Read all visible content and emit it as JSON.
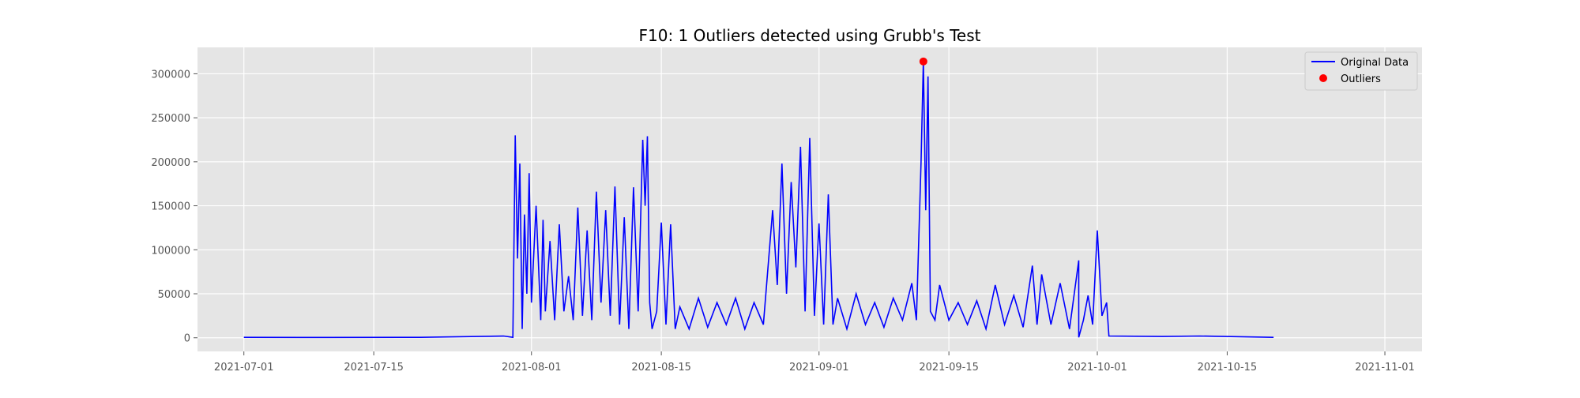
{
  "chart_data": {
    "type": "line",
    "title": "F10: 1 Outliers detected using Grubb's Test",
    "xlabel": "",
    "ylabel": "",
    "x_start": "2021-07-01",
    "x_end": "2021-11-01",
    "xlim": [
      "2021-06-26",
      "2021-11-05"
    ],
    "ylim": [
      -15500,
      330000
    ],
    "x_ticks": [
      "2021-07-01",
      "2021-07-15",
      "2021-08-01",
      "2021-08-15",
      "2021-09-01",
      "2021-09-15",
      "2021-10-01",
      "2021-10-15",
      "2021-11-01"
    ],
    "y_ticks": [
      0,
      50000,
      100000,
      150000,
      200000,
      250000,
      300000
    ],
    "y_tick_labels": [
      "0",
      "50000",
      "100000",
      "150000",
      "200000",
      "250000",
      "300000"
    ],
    "grid": true,
    "legend_position": "top-right",
    "series": [
      {
        "name": "Original Data",
        "color": "#0000ff",
        "points": [
          [
            "2021-07-01",
            500
          ],
          [
            "2021-07-10",
            400
          ],
          [
            "2021-07-20",
            500
          ],
          [
            "2021-07-29",
            2000
          ],
          [
            "2021-07-30",
            500
          ],
          [
            "2021-07-30 06:00",
            230000
          ],
          [
            "2021-07-30 12:00",
            90000
          ],
          [
            "2021-07-30 18:00",
            198000
          ],
          [
            "2021-07-31",
            10000
          ],
          [
            "2021-07-31 06:00",
            140000
          ],
          [
            "2021-07-31 12:00",
            50000
          ],
          [
            "2021-07-31 18:00",
            187000
          ],
          [
            "2021-08-01",
            40000
          ],
          [
            "2021-08-01 12:00",
            150000
          ],
          [
            "2021-08-02",
            20000
          ],
          [
            "2021-08-02 06:00",
            134000
          ],
          [
            "2021-08-02 12:00",
            30000
          ],
          [
            "2021-08-03",
            110000
          ],
          [
            "2021-08-03 12:00",
            20000
          ],
          [
            "2021-08-04",
            129000
          ],
          [
            "2021-08-04 12:00",
            30000
          ],
          [
            "2021-08-05",
            70000
          ],
          [
            "2021-08-05 12:00",
            20000
          ],
          [
            "2021-08-06",
            148000
          ],
          [
            "2021-08-06 12:00",
            25000
          ],
          [
            "2021-08-07",
            122000
          ],
          [
            "2021-08-07 12:00",
            20000
          ],
          [
            "2021-08-08",
            166000
          ],
          [
            "2021-08-08 12:00",
            40000
          ],
          [
            "2021-08-09",
            145000
          ],
          [
            "2021-08-09 12:00",
            25000
          ],
          [
            "2021-08-10",
            172000
          ],
          [
            "2021-08-10 12:00",
            15000
          ],
          [
            "2021-08-11",
            137000
          ],
          [
            "2021-08-11 12:00",
            10000
          ],
          [
            "2021-08-12",
            171000
          ],
          [
            "2021-08-12 12:00",
            30000
          ],
          [
            "2021-08-13",
            225000
          ],
          [
            "2021-08-13 06:00",
            150000
          ],
          [
            "2021-08-13 12:00",
            229000
          ],
          [
            "2021-08-13 18:00",
            40000
          ],
          [
            "2021-08-14",
            10000
          ],
          [
            "2021-08-14 12:00",
            30000
          ],
          [
            "2021-08-15",
            131000
          ],
          [
            "2021-08-15 12:00",
            15000
          ],
          [
            "2021-08-16",
            129000
          ],
          [
            "2021-08-16 12:00",
            10000
          ],
          [
            "2021-08-17",
            35000
          ],
          [
            "2021-08-18",
            10000
          ],
          [
            "2021-08-19",
            45000
          ],
          [
            "2021-08-20",
            12000
          ],
          [
            "2021-08-21",
            40000
          ],
          [
            "2021-08-22",
            15000
          ],
          [
            "2021-08-23",
            45000
          ],
          [
            "2021-08-24",
            10000
          ],
          [
            "2021-08-25",
            40000
          ],
          [
            "2021-08-26",
            15000
          ],
          [
            "2021-08-27",
            145000
          ],
          [
            "2021-08-27 12:00",
            60000
          ],
          [
            "2021-08-28",
            198000
          ],
          [
            "2021-08-28 12:00",
            50000
          ],
          [
            "2021-08-29",
            177000
          ],
          [
            "2021-08-29 12:00",
            80000
          ],
          [
            "2021-08-30",
            217000
          ],
          [
            "2021-08-30 12:00",
            30000
          ],
          [
            "2021-08-31",
            227000
          ],
          [
            "2021-08-31 12:00",
            25000
          ],
          [
            "2021-09-01",
            130000
          ],
          [
            "2021-09-01 12:00",
            15000
          ],
          [
            "2021-09-02",
            163000
          ],
          [
            "2021-09-02 12:00",
            15000
          ],
          [
            "2021-09-03",
            45000
          ],
          [
            "2021-09-04",
            10000
          ],
          [
            "2021-09-05",
            50000
          ],
          [
            "2021-09-06",
            15000
          ],
          [
            "2021-09-07",
            40000
          ],
          [
            "2021-09-08",
            12000
          ],
          [
            "2021-09-09",
            45000
          ],
          [
            "2021-09-10",
            20000
          ],
          [
            "2021-09-11",
            62000
          ],
          [
            "2021-09-11 12:00",
            20000
          ],
          [
            "2021-09-12",
            200000
          ],
          [
            "2021-09-12 06:00",
            314000
          ],
          [
            "2021-09-12 12:00",
            145000
          ],
          [
            "2021-09-12 18:00",
            297000
          ],
          [
            "2021-09-13",
            30000
          ],
          [
            "2021-09-13 12:00",
            20000
          ],
          [
            "2021-09-14",
            60000
          ],
          [
            "2021-09-15",
            20000
          ],
          [
            "2021-09-16",
            40000
          ],
          [
            "2021-09-17",
            15000
          ],
          [
            "2021-09-18",
            42000
          ],
          [
            "2021-09-19",
            10000
          ],
          [
            "2021-09-20",
            60000
          ],
          [
            "2021-09-21",
            15000
          ],
          [
            "2021-09-22",
            48000
          ],
          [
            "2021-09-23",
            12000
          ],
          [
            "2021-09-24",
            82000
          ],
          [
            "2021-09-24 12:00",
            15000
          ],
          [
            "2021-09-25",
            72000
          ],
          [
            "2021-09-26",
            15000
          ],
          [
            "2021-09-27",
            62000
          ],
          [
            "2021-09-28",
            10000
          ],
          [
            "2021-09-29",
            88000
          ],
          [
            "2021-09-29 12:00",
            20000
          ],
          [
            "2021-09-30",
            48000
          ],
          [
            "2021-09-30 12:00",
            15000
          ],
          [
            "2021-10-01",
            122000
          ],
          [
            "2021-10-01 12:00",
            25000
          ],
          [
            "2021-10-02",
            40000
          ],
          [
            "2021-10-02 06:00",
            2000
          ],
          [
            "2021-10-08",
            1500
          ],
          [
            "2021-10-12",
            2000
          ],
          [
            "2021-10-20",
            500
          ],
          [
            "2021-09-29",
            500
          ]
        ]
      }
    ],
    "outliers": {
      "name": "Outliers",
      "color": "#ff0000",
      "points": [
        [
          "2021-09-12 06:00",
          314000
        ]
      ]
    }
  }
}
